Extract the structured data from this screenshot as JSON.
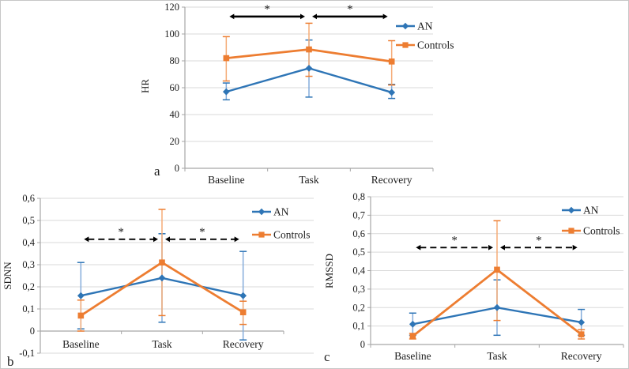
{
  "figure": {
    "background": "#ffffff",
    "border_color": "#c6c6c6",
    "text_color": "#1c1c1c",
    "grid_color": "#d9d9d9",
    "axis_color": "#a6a6a6",
    "sig_color": "#000000",
    "categories": [
      "Baseline",
      "Task",
      "Recovery"
    ],
    "legend_labels": [
      "AN",
      "Controls"
    ]
  },
  "chart_data": [
    {
      "id": "a",
      "type": "line",
      "panel_label": "a",
      "ylabel": "HR",
      "categories": [
        "Baseline",
        "Task",
        "Recovery"
      ],
      "ylim": [
        0,
        120
      ],
      "ytick_step": 20,
      "ytick_labels": [
        "120",
        "100",
        "80",
        "60",
        "40",
        "20",
        "0"
      ],
      "axis_cross": 0,
      "grid": true,
      "legend_position": "top-right",
      "series": [
        {
          "name": "AN",
          "marker": "diamond",
          "color": "#2E75B6",
          "err_color": "#84ACDB",
          "values": [
            57,
            74.5,
            56.5
          ],
          "err_low": [
            51,
            53,
            52
          ],
          "err_high": [
            63.5,
            95.5,
            62.5
          ]
        },
        {
          "name": "Controls",
          "marker": "square",
          "color": "#ED7D31",
          "err_color": "#F5AC77",
          "values": [
            82,
            88.5,
            79.5
          ],
          "err_low": [
            65,
            68.5,
            62
          ],
          "err_high": [
            98,
            108,
            95
          ]
        }
      ],
      "significance": {
        "style": "solid",
        "y": 113,
        "label": "*",
        "pairs": [
          [
            0,
            1
          ],
          [
            1,
            2
          ]
        ]
      }
    },
    {
      "id": "b",
      "type": "line",
      "panel_label": "b",
      "ylabel": "SDNN",
      "categories": [
        "Baseline",
        "Task",
        "Recovery"
      ],
      "ylim": [
        -0.1,
        0.6
      ],
      "ytick_step": 0.1,
      "ytick_labels": [
        "0,6",
        "0,5",
        "0,4",
        "0,3",
        "0,2",
        "0,1",
        "0",
        "-0,1"
      ],
      "axis_cross": 0,
      "grid": true,
      "legend_position": "top-right",
      "series": [
        {
          "name": "AN",
          "marker": "diamond",
          "color": "#2E75B6",
          "err_color": "#84ACDB",
          "values": [
            0.16,
            0.24,
            0.16
          ],
          "err_low": [
            0.01,
            0.04,
            -0.04
          ],
          "err_high": [
            0.31,
            0.44,
            0.36
          ]
        },
        {
          "name": "Controls",
          "marker": "square",
          "color": "#ED7D31",
          "err_color": "#F5AC77",
          "values": [
            0.07,
            0.31,
            0.085
          ],
          "err_low": [
            0.0,
            0.07,
            0.03
          ],
          "err_high": [
            0.14,
            0.55,
            0.135
          ]
        }
      ],
      "significance": {
        "style": "dashed",
        "y": 0.415,
        "label": "*",
        "pairs": [
          [
            0,
            1
          ],
          [
            1,
            2
          ]
        ]
      }
    },
    {
      "id": "c",
      "type": "line",
      "panel_label": "c",
      "ylabel": "RMSSD",
      "categories": [
        "Baseline",
        "Task",
        "Recovery"
      ],
      "ylim": [
        0,
        0.8
      ],
      "ytick_step": 0.1,
      "ytick_labels": [
        "0,8",
        "0,7",
        "0,6",
        "0,5",
        "0,4",
        "0,3",
        "0,2",
        "0,1",
        "0"
      ],
      "axis_cross": 0,
      "grid": true,
      "legend_position": "top-right",
      "series": [
        {
          "name": "AN",
          "marker": "diamond",
          "color": "#2E75B6",
          "err_color": "#84ACDB",
          "values": [
            0.11,
            0.2,
            0.12
          ],
          "err_low": [
            0.05,
            0.05,
            0.05
          ],
          "err_high": [
            0.17,
            0.35,
            0.19
          ]
        },
        {
          "name": "Controls",
          "marker": "square",
          "color": "#ED7D31",
          "err_color": "#F5AC77",
          "values": [
            0.045,
            0.405,
            0.055
          ],
          "err_low": [
            0.03,
            0.13,
            0.03
          ],
          "err_high": [
            0.06,
            0.67,
            0.08
          ]
        }
      ],
      "significance": {
        "style": "dashed",
        "y": 0.525,
        "label": "*",
        "pairs": [
          [
            0,
            1
          ],
          [
            1,
            2
          ]
        ]
      }
    }
  ]
}
